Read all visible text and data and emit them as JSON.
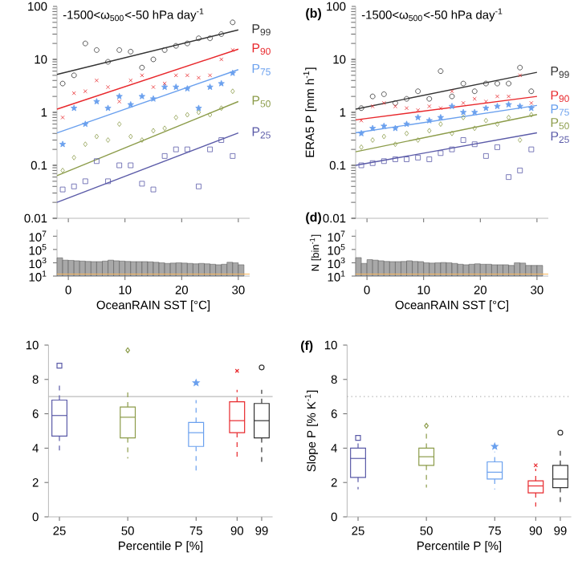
{
  "chart_data": [
    {
      "type": "scatter",
      "annotations": [
        "-1500<ω$_{500}$<-50 hPa day$^{-1}$"
      ],
      "log": "y",
      "tick_labels": "y",
      "xlim": [
        -2,
        32
      ],
      "xticks": [
        {
          "value": 0,
          "label": null
        },
        {
          "value": 10,
          "label": null
        },
        {
          "value": 20,
          "label": null
        },
        {
          "value": 30,
          "label": null
        }
      ],
      "ylim": [
        0.01,
        100
      ],
      "yticks": [
        0.01,
        0.1,
        1,
        10,
        100
      ],
      "x": [
        -1,
        1,
        3,
        5,
        7,
        9,
        11,
        13,
        15,
        17,
        19,
        21,
        23,
        25,
        27,
        29
      ],
      "series": [
        {
          "name": "P$_{99}$",
          "color": "#333333",
          "marker": "circle",
          "values": [
            3.5,
            5,
            20,
            15,
            9,
            15,
            14,
            7,
            10,
            15,
            18,
            20,
            25,
            25,
            30,
            50
          ]
        },
        {
          "type": "line",
          "color": "#333333",
          "x": [
            -2,
            30
          ],
          "values": [
            5.2,
            36
          ]
        },
        {
          "name": "P$_{90}$",
          "color": "#e8282c",
          "marker": "cross",
          "values": [
            0.8,
            2.3,
            2.5,
            4,
            3,
            1.6,
            4,
            5,
            3,
            3.5,
            5,
            5,
            4.5,
            5,
            10,
            15
          ]
        },
        {
          "type": "line",
          "color": "#e8282c",
          "x": [
            -2,
            30
          ],
          "values": [
            1.15,
            15.6
          ]
        },
        {
          "name": "P$_{75}$",
          "color": "#6aa0ee",
          "marker": "star",
          "values": [
            0.25,
            1.2,
            0.6,
            1.6,
            1.2,
            2,
            1.4,
            2,
            1.8,
            3,
            3,
            2.8,
            1.2,
            3,
            3.5,
            5.5
          ]
        },
        {
          "type": "line",
          "color": "#6aa0ee",
          "x": [
            -2,
            30
          ],
          "values": [
            0.41,
            6.4
          ]
        },
        {
          "name": "P$_{50}$",
          "color": "#8c9c4a",
          "marker": "diamond",
          "values": [
            0.08,
            0.14,
            0.25,
            0.35,
            0.3,
            0.6,
            0.35,
            0.3,
            0.45,
            0.5,
            0.8,
            0.9,
            1.0,
            0.9,
            1.2,
            2.5
          ]
        },
        {
          "type": "line",
          "color": "#8c9c4a",
          "x": [
            -2,
            30
          ],
          "values": [
            0.064,
            1.6
          ]
        },
        {
          "name": "P$_{25}$",
          "color": "#5b5ba8",
          "marker": "square",
          "values": [
            0.035,
            0.04,
            0.05,
            0.12,
            0.05,
            0.1,
            0.1,
            0.045,
            0.035,
            0.15,
            0.2,
            0.2,
            0.04,
            0.2,
            0.3,
            0.15
          ]
        },
        {
          "type": "line",
          "color": "#5b5ba8",
          "x": [
            -2,
            30
          ],
          "values": [
            0.02,
            0.41
          ]
        }
      ]
    },
    {
      "type": "scatter",
      "title": "(b)",
      "ylabel": "ERA5 P [mm h$^{-1}$]",
      "annotations": [
        "-1500<ω$_{500}$<-50 hPa day$^{-1}$"
      ],
      "log": "y",
      "tick_labels": "y",
      "xlim": [
        -2,
        32
      ],
      "xticks": [
        {
          "value": 0,
          "label": null
        },
        {
          "value": 10,
          "label": null
        },
        {
          "value": 20,
          "label": null
        },
        {
          "value": 30,
          "label": null
        }
      ],
      "ylim": [
        0.01,
        100
      ],
      "yticks": [
        0.01,
        0.1,
        1,
        10,
        100
      ],
      "x": [
        -1,
        1,
        3,
        5,
        7,
        9,
        11,
        13,
        15,
        17,
        19,
        21,
        23,
        25,
        27,
        29
      ],
      "series": [
        {
          "name": "P$_{99}$",
          "color": "#333333",
          "marker": "circle",
          "values": [
            1.2,
            2,
            2.2,
            1.5,
            1.8,
            2.5,
            1.8,
            6,
            2,
            3.5,
            2.5,
            3.5,
            3.5,
            3.5,
            7,
            2.5
          ]
        },
        {
          "type": "line",
          "color": "#333333",
          "x": [
            -2,
            30
          ],
          "values": [
            1.15,
            5.7
          ]
        },
        {
          "name": "P$_{90}$",
          "color": "#e8282c",
          "marker": "cross",
          "values": [
            0.7,
            1.3,
            1.5,
            1.3,
            1.2,
            1.1,
            1.3,
            1.2,
            2.5,
            1.5,
            1.8,
            1.6,
            2,
            2,
            5,
            1.5
          ]
        },
        {
          "type": "line",
          "color": "#e8282c",
          "x": [
            -2,
            30
          ],
          "values": [
            0.72,
            2.0
          ]
        },
        {
          "name": "P$_{75}$",
          "color": "#6aa0ee",
          "marker": "star",
          "values": [
            0.4,
            0.5,
            0.55,
            0.5,
            0.6,
            0.8,
            0.7,
            0.8,
            1.3,
            1.0,
            1.0,
            1.2,
            1.3,
            1.4,
            1.3,
            1.2
          ]
        },
        {
          "type": "line",
          "color": "#6aa0ee",
          "x": [
            -2,
            30
          ],
          "values": [
            0.41,
            1.35
          ]
        },
        {
          "name": "P$_{50}$",
          "color": "#8c9c4a",
          "marker": "diamond",
          "values": [
            0.22,
            0.3,
            0.35,
            0.25,
            0.4,
            0.3,
            0.45,
            0.6,
            0.4,
            0.8,
            0.5,
            0.7,
            0.6,
            0.8,
            0.3,
            0.9
          ]
        },
        {
          "type": "line",
          "color": "#8c9c4a",
          "x": [
            -2,
            30
          ],
          "values": [
            0.18,
            0.91
          ]
        },
        {
          "name": "P$_{25}$",
          "color": "#5b5ba8",
          "marker": "square",
          "values": [
            0.1,
            0.11,
            0.12,
            0.13,
            0.13,
            0.14,
            0.13,
            0.17,
            0.2,
            0.3,
            0.25,
            0.15,
            0.22,
            0.06,
            0.08,
            0.2
          ]
        },
        {
          "type": "line",
          "color": "#5b5ba8",
          "x": [
            -2,
            30
          ],
          "values": [
            0.1,
            0.41
          ]
        }
      ]
    },
    {
      "type": "histogram",
      "xlabel": "OceanRAIN SST [°C]",
      "log": "y",
      "xlim": [
        -2,
        32
      ],
      "xticks": [
        0,
        10,
        20,
        30
      ],
      "ylim": [
        10,
        100000000
      ],
      "yticks": [
        {
          "value": 10,
          "label": "10$^{1}$"
        },
        {
          "value": 1000,
          "label": "10$^{3}$"
        },
        {
          "value": 100000,
          "label": "10$^{5}$"
        },
        {
          "value": 10000000,
          "label": "10$^{7}$"
        }
      ],
      "color": "#a8a8a8",
      "bins": [
        -2,
        -1,
        0,
        1,
        2,
        3,
        4,
        5,
        6,
        7,
        8,
        9,
        10,
        11,
        12,
        13,
        14,
        15,
        16,
        17,
        18,
        19,
        20,
        21,
        22,
        23,
        24,
        25,
        26,
        27,
        28,
        29,
        30,
        31
      ],
      "values": [
        5600,
        2500,
        2300,
        2000,
        1800,
        1600,
        1500,
        1500,
        1800,
        2500,
        2000,
        1800,
        1600,
        1500,
        1500,
        1500,
        1400,
        1200,
        1000,
        800,
        900,
        1000,
        900,
        800,
        700,
        800,
        700,
        600,
        500,
        600,
        1200,
        1000,
        500
      ],
      "ref_lines": [
        {
          "axis": "y",
          "value": 20,
          "color": "#f7b55b"
        }
      ]
    },
    {
      "type": "histogram",
      "title": "(d)",
      "xlabel": "OceanRAIN SST [°C]",
      "ylabel": "N [bin$^{-1}$]",
      "log": "y",
      "xlim": [
        -2,
        32
      ],
      "xticks": [
        0,
        10,
        20,
        30
      ],
      "ylim": [
        10,
        100000000
      ],
      "yticks": [
        {
          "value": 10,
          "label": "10$^{1}$"
        },
        {
          "value": 1000,
          "label": "10$^{3}$"
        },
        {
          "value": 100000,
          "label": "10$^{5}$"
        },
        {
          "value": 10000000,
          "label": "10$^{7}$"
        }
      ],
      "color": "#a8a8a8",
      "bins": [
        -2,
        -1,
        0,
        1,
        2,
        3,
        4,
        5,
        6,
        7,
        8,
        9,
        10,
        11,
        12,
        13,
        14,
        15,
        16,
        17,
        18,
        19,
        20,
        21,
        22,
        23,
        24,
        25,
        26,
        27,
        28,
        29,
        30,
        31
      ],
      "values": [
        6000,
        800,
        3000,
        2500,
        2000,
        1600,
        1500,
        1500,
        1600,
        2000,
        1600,
        1500,
        1000,
        900,
        1000,
        1100,
        1000,
        800,
        600,
        500,
        600,
        700,
        600,
        600,
        500,
        500,
        500,
        400,
        1000,
        900,
        400,
        400,
        400
      ],
      "ref_lines": [
        {
          "axis": "y",
          "value": 20,
          "color": "#f7b55b"
        }
      ]
    },
    {
      "type": "box",
      "xlabel": "Percentile P [%]",
      "xlim": [
        21,
        103
      ],
      "xticks": [
        25,
        50,
        75,
        90,
        99
      ],
      "ylim": [
        0,
        10
      ],
      "yticks": [
        0,
        2,
        4,
        6,
        8,
        10
      ],
      "ref_lines": [
        {
          "axis": "y",
          "value": 7,
          "color": "#bbbbbb",
          "line_style": "solid"
        }
      ],
      "series": [
        {
          "color": "#5b5ba8",
          "marker": "square",
          "x": [
            25
          ],
          "boxes": [
            {
              "low": 3.6,
              "q1": 4.7,
              "median": 5.9,
              "q3": 6.8,
              "high": 7.9,
              "outliers": [
                8.8
              ]
            }
          ]
        },
        {
          "color": "#8c9c4a",
          "marker": "diamond",
          "x": [
            50
          ],
          "boxes": [
            {
              "low": 3.4,
              "q1": 4.6,
              "median": 5.8,
              "q3": 6.4,
              "high": 7.5,
              "outliers": [
                9.7
              ]
            }
          ]
        },
        {
          "color": "#6aa0ee",
          "marker": "star",
          "x": [
            75
          ],
          "boxes": [
            {
              "low": 2.6,
              "q1": 4.1,
              "median": 4.9,
              "q3": 5.5,
              "high": 6.8,
              "outliers": [
                7.8
              ]
            }
          ]
        },
        {
          "color": "#e8282c",
          "marker": "cross",
          "x": [
            90
          ],
          "boxes": [
            {
              "low": 3.5,
              "q1": 4.9,
              "median": 5.6,
              "q3": 6.7,
              "high": 7.4,
              "outliers": [
                8.5
              ]
            }
          ]
        },
        {
          "color": "#333333",
          "marker": "circle",
          "x": [
            99
          ],
          "boxes": [
            {
              "low": 3.0,
              "q1": 4.6,
              "median": 5.6,
              "q3": 6.6,
              "high": 7.4,
              "outliers": [
                8.7
              ]
            }
          ]
        }
      ]
    },
    {
      "type": "box",
      "title": "(f)",
      "xlabel": "Percentile P [%]",
      "ylabel": "Slope P [% K$^{-1}$]",
      "xlim": [
        21,
        103
      ],
      "xticks": [
        25,
        50,
        75,
        90,
        99
      ],
      "ylim": [
        0,
        10
      ],
      "yticks": [
        0,
        2,
        4,
        6,
        8,
        10
      ],
      "ref_lines": [
        {
          "axis": "y",
          "value": 7,
          "color": "#aaaaaa",
          "line_style": "dotted"
        }
      ],
      "series": [
        {
          "color": "#5b5ba8",
          "marker": "square",
          "x": [
            25
          ],
          "boxes": [
            {
              "low": 1.6,
              "q1": 2.3,
              "median": 3.4,
              "q3": 4.0,
              "high": 4.5,
              "outliers": [
                4.6
              ]
            }
          ]
        },
        {
          "color": "#8c9c4a",
          "marker": "diamond",
          "x": [
            50
          ],
          "boxes": [
            {
              "low": 1.7,
              "q1": 3.0,
              "median": 3.5,
              "q3": 4.0,
              "high": 4.9,
              "outliers": [
                5.3
              ]
            }
          ]
        },
        {
          "color": "#6aa0ee",
          "marker": "star",
          "x": [
            75
          ],
          "boxes": [
            {
              "low": 1.6,
              "q1": 2.2,
              "median": 2.6,
              "q3": 3.2,
              "high": 3.8,
              "outliers": [
                4.1
              ]
            }
          ]
        },
        {
          "color": "#e8282c",
          "marker": "cross",
          "x": [
            90
          ],
          "boxes": [
            {
              "low": 0.6,
              "q1": 1.4,
              "median": 1.8,
              "q3": 2.1,
              "high": 2.8,
              "outliers": [
                3.0
              ]
            }
          ]
        },
        {
          "color": "#333333",
          "marker": "circle",
          "x": [
            99
          ],
          "boxes": [
            {
              "low": 0.8,
              "q1": 1.7,
              "median": 2.2,
              "q3": 3.0,
              "high": 4.0,
              "outliers": [
                4.9
              ]
            }
          ]
        }
      ]
    }
  ]
}
